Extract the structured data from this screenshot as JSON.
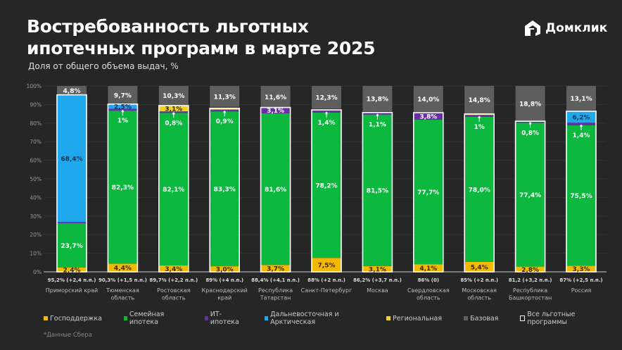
{
  "header": {
    "title_line1": "Востребованность льготных",
    "title_line2": "ипотечных программ в марте 2025",
    "subtitle": "Доля от общего объема выдач, %",
    "logo_text": "Домклик"
  },
  "footnote": "*Данные Сбера",
  "chart_data": {
    "type": "bar",
    "stacked": true,
    "title": "Востребованность льготных ипотечных программ в марте 2025",
    "subtitle": "Доля от общего объема выдач, %",
    "ylim": [
      0,
      100
    ],
    "yticks": [
      "0%",
      "10%",
      "20%",
      "30%",
      "40%",
      "50%",
      "60%",
      "70%",
      "80%",
      "90%",
      "100%"
    ],
    "grid": true,
    "legend_position": "bottom",
    "categories": [
      "Приморский край",
      "Тюменская область",
      "Ростовская область",
      "Краснодарский край",
      "Республика Татарстан",
      "Санкт-Петербург",
      "Москва",
      "Свердловская область",
      "Московская область",
      "Республика Башкортостан",
      "Россия"
    ],
    "category_lines": [
      [
        "Приморский край"
      ],
      [
        "Тюменская",
        "область"
      ],
      [
        "Ростовская",
        "область"
      ],
      [
        "Краснодарский",
        "край"
      ],
      [
        "Республика",
        "Татарстан"
      ],
      [
        "Санкт-Петербург"
      ],
      [
        "Москва"
      ],
      [
        "Свердловская",
        "область"
      ],
      [
        "Московская",
        "область"
      ],
      [
        "Республика",
        "Башкортостан"
      ],
      [
        "Россия"
      ]
    ],
    "totals": [
      "95,2% (+2,4 п.п.)",
      "90,3% (+1,5 п.п.)",
      "89,7% (+2,2 п.п.)",
      "89% (+4 п.п.)",
      "88,4% (+4,1 п.п.)",
      "88% (+2 п.п.)",
      "86,2% (+3,7 п.п.)",
      "86% (0)",
      "85% (+2 п.п.)",
      "81,2 (+3,2 п.п.)",
      "87% (+2,5 п.п.)"
    ],
    "series": [
      {
        "name": "Господдержка",
        "color": "#f5b800",
        "text_color": "#3a2a00",
        "values": [
          2.4,
          4.4,
          3.4,
          3.0,
          3.7,
          7.5,
          3.1,
          4.1,
          5.4,
          2.8,
          3.3
        ],
        "labels": [
          "2,4%",
          "4,4%",
          "3,4%",
          "3,0%",
          "3,7%",
          "7,5%",
          "3,1%",
          "4,1%",
          "5,4%",
          "2,8%",
          "3,3%"
        ]
      },
      {
        "name": "Семейная ипотека",
        "color": "#0db83f",
        "text_color": "#ffffff",
        "values": [
          23.7,
          82.3,
          82.1,
          83.3,
          81.6,
          78.2,
          81.5,
          77.7,
          78.0,
          77.4,
          75.5
        ],
        "labels": [
          "23,7%",
          "82,3%",
          "82,1%",
          "83,3%",
          "81,6%",
          "78,2%",
          "81,5%",
          "77,7%",
          "78,0%",
          "77,4%",
          "75,5%"
        ]
      },
      {
        "name": "ИТ-ипотека",
        "color": "#6a2fa8",
        "text_color": "#ffffff",
        "values": [
          0.7,
          1.0,
          0.8,
          0.9,
          3.1,
          1.4,
          1.1,
          3.8,
          1.0,
          0.8,
          1.4
        ],
        "labels": [
          null,
          "1%",
          "0,8%",
          "0,9%",
          "3,1%",
          "1,4%",
          "1,1%",
          "3,8%",
          "1%",
          "0,8%",
          "1,4%"
        ]
      },
      {
        "name": "Дальневосточная и Арктическая",
        "color": "#1fa8ec",
        "text_color": "#10324e",
        "values": [
          68.4,
          2.5,
          0,
          0,
          0,
          0,
          0,
          0,
          0,
          0,
          6.2
        ],
        "labels": [
          "68,4%",
          "2,5%",
          null,
          null,
          null,
          null,
          null,
          null,
          null,
          null,
          "6,2%"
        ]
      },
      {
        "name": "Региональная",
        "color": "#f2d21c",
        "text_color": "#3a2a00",
        "values": [
          0,
          0,
          3.1,
          0.8,
          0,
          0,
          0,
          0,
          0.5,
          0,
          0
        ],
        "labels": [
          null,
          null,
          "3,1%",
          null,
          null,
          null,
          null,
          null,
          null,
          null,
          null
        ]
      },
      {
        "name": "Базовая",
        "color": "#5e5e5e",
        "text_color": "#ffffff",
        "values": [
          4.8,
          9.7,
          10.3,
          11.3,
          11.6,
          12.3,
          13.8,
          14.0,
          14.8,
          18.8,
          13.1
        ],
        "labels": [
          "4,8%",
          "9,7%",
          "10,3%",
          "11,3%",
          "11,6%",
          "12,3%",
          "13,8%",
          "14,0%",
          "14,8%",
          "18,8%",
          "13,1%"
        ]
      }
    ],
    "outline_series": {
      "name": "Все льготные программы",
      "color": "#ffffff"
    }
  }
}
